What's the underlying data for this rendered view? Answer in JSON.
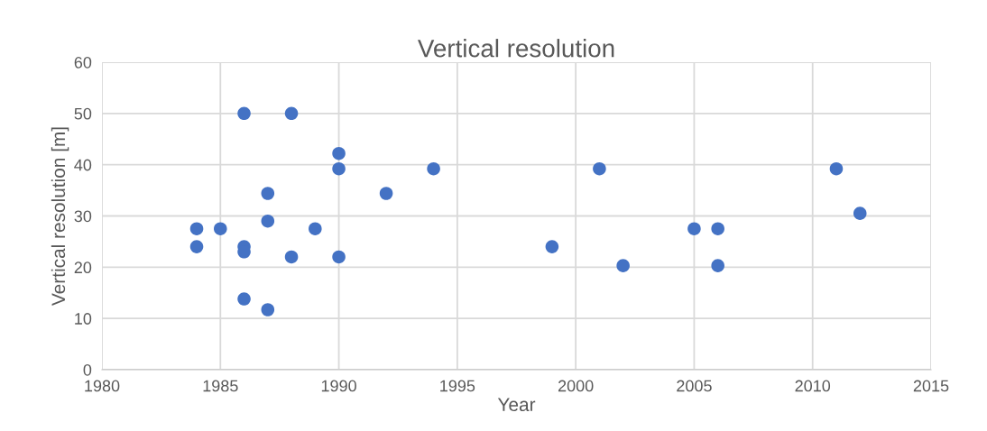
{
  "chart_data": {
    "type": "scatter",
    "title": "Vertical resolution",
    "xlabel": "Year",
    "ylabel": "Vertical resolution [m]",
    "x": [
      1984,
      1984,
      1985,
      1986,
      1986,
      1986,
      1986,
      1987,
      1987,
      1987,
      1988,
      1988,
      1989,
      1990,
      1990,
      1990,
      1992,
      1994,
      1999,
      2001,
      2002,
      2005,
      2006,
      2006,
      2011,
      2012
    ],
    "values": [
      27.5,
      24,
      27.5,
      50,
      24,
      23,
      13.8,
      34.4,
      29,
      11.7,
      50,
      22,
      27.5,
      42.2,
      39.2,
      22,
      34.4,
      39.2,
      24,
      39.2,
      20.3,
      27.5,
      27.5,
      20.3,
      39.2,
      30.5
    ],
    "color": "#4472c4",
    "marker": "circle",
    "xlim": [
      1980,
      2015
    ],
    "xticks": [
      1980,
      1985,
      1990,
      1995,
      2000,
      2005,
      2010,
      2015
    ],
    "ylim": [
      0,
      60
    ],
    "yticks": [
      0,
      10,
      20,
      30,
      40,
      50,
      60
    ],
    "grid": true,
    "legend": false
  }
}
